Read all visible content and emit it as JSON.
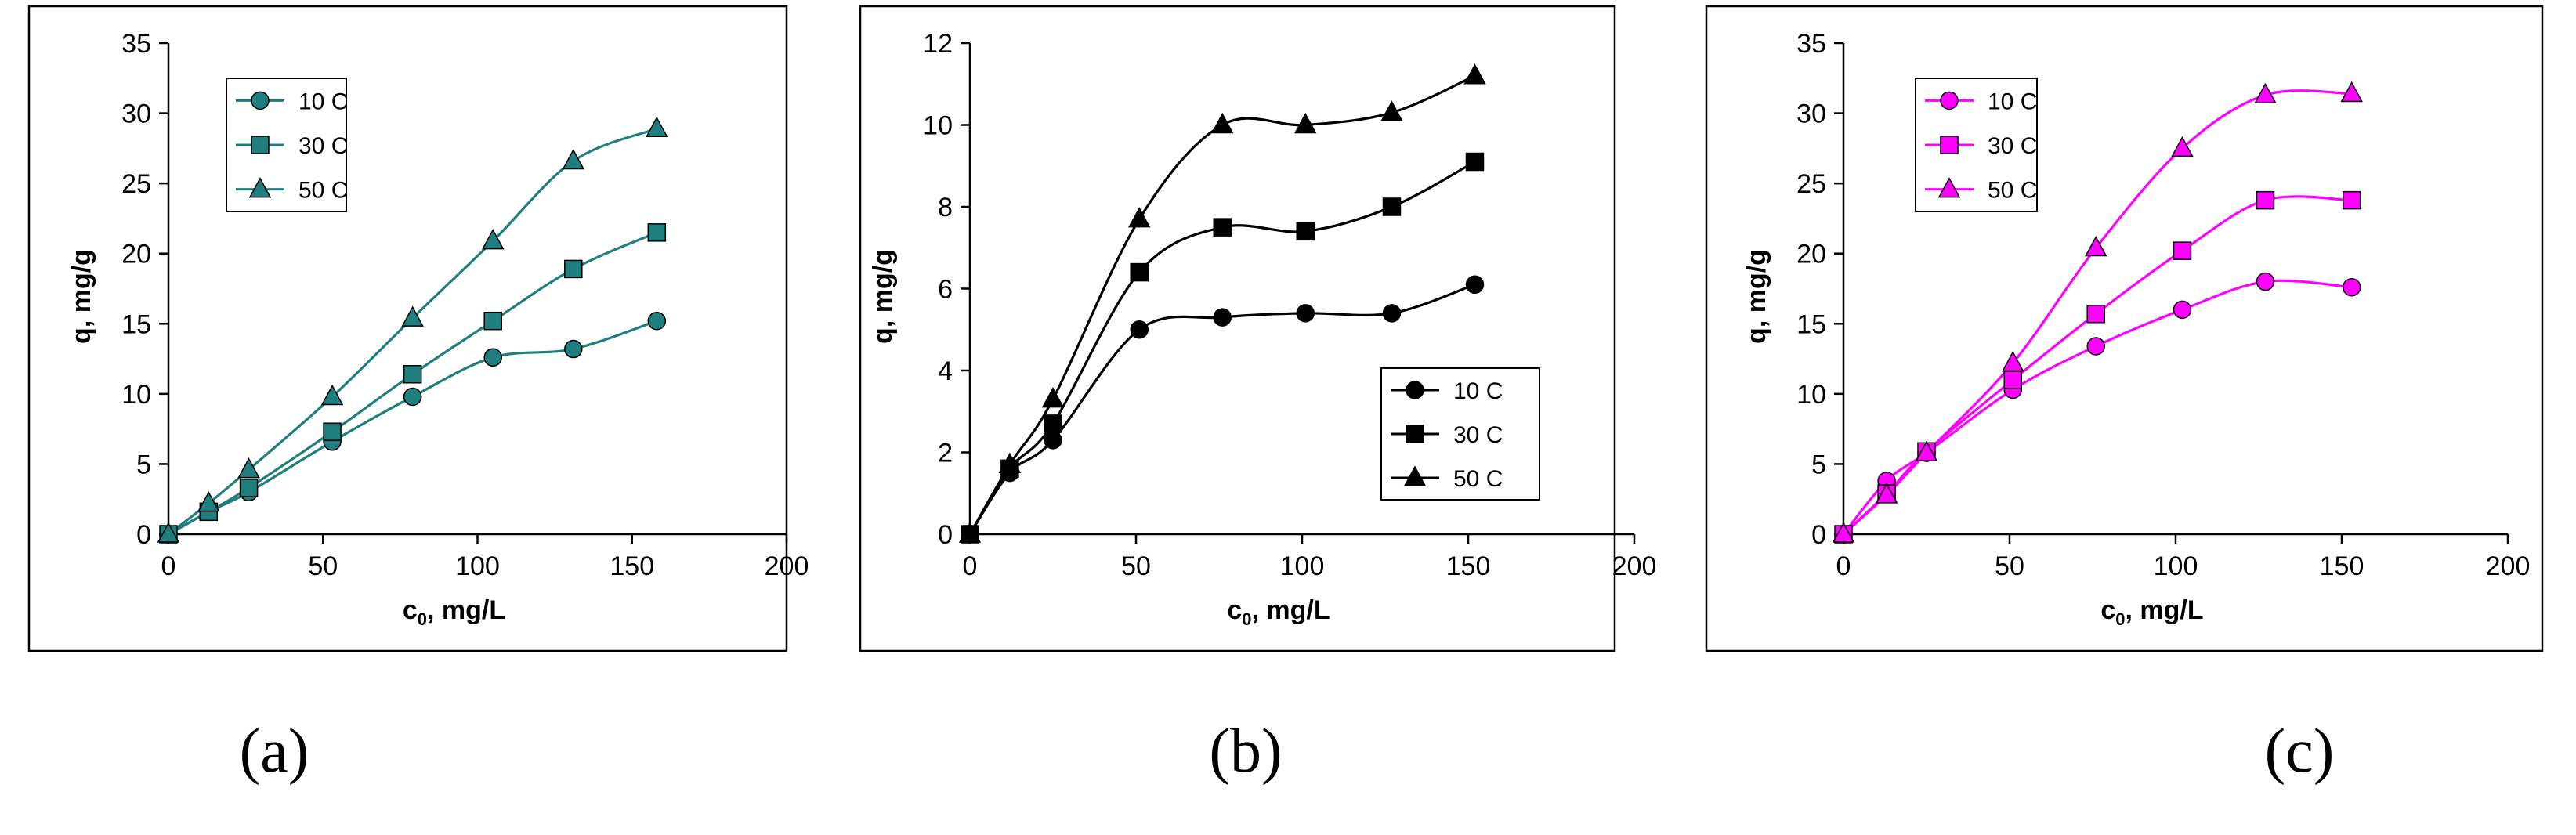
{
  "chart_data": [
    {
      "type": "line",
      "panel": "(a)",
      "xlabel": "c0, mg/L",
      "ylabel": "q, mg/g",
      "xlim": [
        0,
        200
      ],
      "ylim": [
        0,
        35
      ],
      "xticks": [
        0,
        50,
        100,
        150,
        200
      ],
      "yticks": [
        0,
        5,
        10,
        15,
        20,
        25,
        30,
        35
      ],
      "color": "#1F7F7F",
      "marker_fill": "#1F7F7F",
      "legend_position": "top-left",
      "series": [
        {
          "name": "10 C",
          "marker": "circle",
          "x": [
            0,
            13,
            26,
            53,
            79,
            105,
            131,
            158
          ],
          "y": [
            0,
            1.6,
            3.0,
            6.6,
            9.8,
            12.6,
            13.2,
            15.2
          ]
        },
        {
          "name": "30 C",
          "marker": "square",
          "x": [
            0,
            13,
            26,
            53,
            79,
            105,
            131,
            158
          ],
          "y": [
            0,
            1.6,
            3.3,
            7.3,
            11.4,
            15.2,
            18.9,
            21.5
          ]
        },
        {
          "name": "50 C",
          "marker": "triangle",
          "x": [
            0,
            13,
            26,
            53,
            79,
            105,
            131,
            158
          ],
          "y": [
            0,
            2.2,
            4.6,
            9.8,
            15.4,
            20.9,
            26.6,
            28.9
          ]
        }
      ]
    },
    {
      "type": "line",
      "panel": "(b)",
      "xlabel": "c0, mg/L",
      "ylabel": "q, mg/g",
      "xlim": [
        0,
        200
      ],
      "ylim": [
        0,
        12
      ],
      "xticks": [
        0,
        50,
        100,
        150,
        200
      ],
      "yticks": [
        0,
        2,
        4,
        6,
        8,
        10,
        12
      ],
      "color": "#000000",
      "marker_fill": "#000000",
      "legend_position": "bottom-right",
      "series": [
        {
          "name": "10 C",
          "marker": "circle",
          "x": [
            0,
            12,
            25,
            51,
            76,
            101,
            127,
            152
          ],
          "y": [
            0,
            1.5,
            2.3,
            5.0,
            5.3,
            5.4,
            5.4,
            6.1
          ]
        },
        {
          "name": "30 C",
          "marker": "square",
          "x": [
            0,
            12,
            25,
            51,
            76,
            101,
            127,
            152
          ],
          "y": [
            0,
            1.6,
            2.7,
            6.4,
            7.5,
            7.4,
            8.0,
            9.1
          ]
        },
        {
          "name": "50 C",
          "marker": "triangle",
          "x": [
            0,
            12,
            25,
            51,
            76,
            101,
            127,
            152
          ],
          "y": [
            0,
            1.7,
            3.3,
            7.7,
            10.0,
            10.0,
            10.3,
            11.2
          ]
        }
      ]
    },
    {
      "type": "line",
      "panel": "(c)",
      "xlabel": "c0, mg/L",
      "ylabel": "q, mg/g",
      "xlim": [
        0,
        200
      ],
      "ylim": [
        0,
        35
      ],
      "xticks": [
        0,
        50,
        100,
        150,
        200
      ],
      "yticks": [
        0,
        5,
        10,
        15,
        20,
        25,
        30,
        35
      ],
      "color": "#FF00FF",
      "marker_fill": "#FF00FF",
      "legend_position": "top-left",
      "series": [
        {
          "name": "10 C",
          "marker": "circle",
          "x": [
            0,
            13,
            25,
            51,
            76,
            102,
            127,
            153
          ],
          "y": [
            0,
            3.8,
            5.8,
            10.3,
            13.4,
            16.0,
            18.0,
            17.6
          ]
        },
        {
          "name": "30 C",
          "marker": "square",
          "x": [
            0,
            13,
            25,
            51,
            76,
            102,
            127,
            153
          ],
          "y": [
            0,
            2.9,
            5.9,
            11.0,
            15.7,
            20.2,
            23.8,
            23.8
          ]
        },
        {
          "name": "50 C",
          "marker": "triangle",
          "x": [
            0,
            13,
            25,
            51,
            76,
            102,
            127,
            153
          ],
          "y": [
            0,
            2.8,
            5.8,
            12.2,
            20.4,
            27.5,
            31.3,
            31.4
          ]
        }
      ]
    }
  ]
}
